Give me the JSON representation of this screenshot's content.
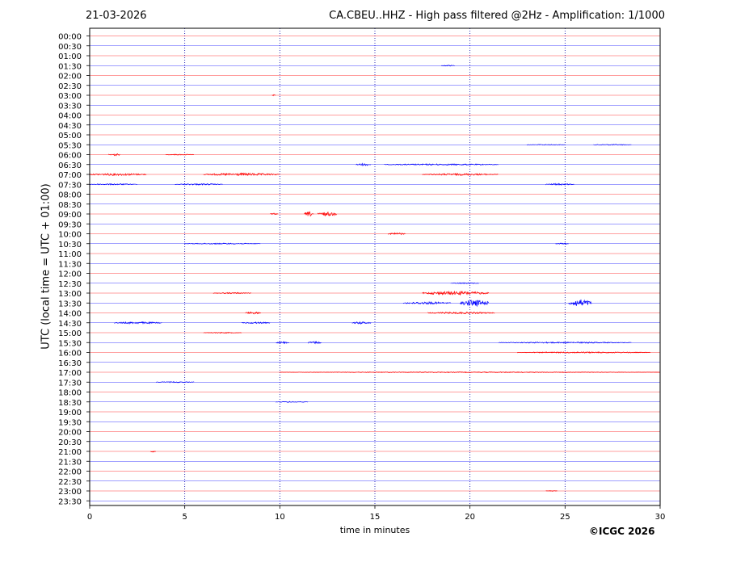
{
  "header": {
    "date": "21-03-2026",
    "title": "CA.CBEU..HHZ - High pass filtered @2Hz - Amplification: 1/1000"
  },
  "footer": {
    "copyright": "©ICGC 2026"
  },
  "chart_data": {
    "type": "seismogram",
    "xlabel": "time in minutes",
    "ylabel": "UTC (local time = UTC + 01:00)",
    "xlim": [
      0,
      30
    ],
    "x_ticks": [
      0,
      5,
      10,
      15,
      20,
      25,
      30
    ],
    "vertical_grid_minutes": [
      5,
      10,
      15,
      20,
      25
    ],
    "grid": "dotted vertical",
    "trace_colors": [
      "#ff0000",
      "#0000ff"
    ],
    "rows": [
      "00:00",
      "00:30",
      "01:00",
      "01:30",
      "02:00",
      "02:30",
      "03:00",
      "03:30",
      "04:00",
      "04:30",
      "05:00",
      "05:30",
      "06:00",
      "06:30",
      "07:00",
      "07:30",
      "08:00",
      "08:30",
      "09:00",
      "09:30",
      "10:00",
      "10:30",
      "11:00",
      "11:30",
      "12:00",
      "12:30",
      "13:00",
      "13:30",
      "14:00",
      "14:30",
      "15:00",
      "15:30",
      "16:00",
      "16:30",
      "17:00",
      "17:30",
      "18:00",
      "18:30",
      "19:00",
      "19:30",
      "20:00",
      "20:30",
      "21:00",
      "21:30",
      "22:00",
      "22:30",
      "23:00",
      "23:30"
    ],
    "events": [
      {
        "row": "01:30",
        "start": 18.5,
        "end": 19.2,
        "amp": 0.8
      },
      {
        "row": "03:00",
        "start": 9.6,
        "end": 9.8,
        "amp": 1.2
      },
      {
        "row": "05:30",
        "start": 23.0,
        "end": 25.0,
        "amp": 0.5
      },
      {
        "row": "05:30",
        "start": 26.5,
        "end": 28.5,
        "amp": 0.6
      },
      {
        "row": "06:00",
        "start": 1.0,
        "end": 1.6,
        "amp": 1.5
      },
      {
        "row": "06:00",
        "start": 4.0,
        "end": 5.5,
        "amp": 0.6
      },
      {
        "row": "06:30",
        "start": 14.0,
        "end": 14.8,
        "amp": 1.5
      },
      {
        "row": "06:30",
        "start": 15.5,
        "end": 21.5,
        "amp": 0.9
      },
      {
        "row": "07:00",
        "start": 0.0,
        "end": 3.0,
        "amp": 1.4
      },
      {
        "row": "07:00",
        "start": 6.0,
        "end": 10.0,
        "amp": 1.6
      },
      {
        "row": "07:00",
        "start": 17.5,
        "end": 21.5,
        "amp": 1.2
      },
      {
        "row": "07:30",
        "start": 0.0,
        "end": 2.5,
        "amp": 0.8
      },
      {
        "row": "07:30",
        "start": 4.5,
        "end": 7.0,
        "amp": 0.9
      },
      {
        "row": "07:30",
        "start": 24.0,
        "end": 25.5,
        "amp": 1.0
      },
      {
        "row": "09:00",
        "start": 9.5,
        "end": 9.9,
        "amp": 1.0
      },
      {
        "row": "09:00",
        "start": 11.3,
        "end": 11.8,
        "amp": 3.0
      },
      {
        "row": "09:00",
        "start": 12.0,
        "end": 13.0,
        "amp": 2.5
      },
      {
        "row": "10:00",
        "start": 15.7,
        "end": 16.6,
        "amp": 1.4
      },
      {
        "row": "10:30",
        "start": 5.0,
        "end": 9.0,
        "amp": 0.7
      },
      {
        "row": "10:30",
        "start": 24.5,
        "end": 25.2,
        "amp": 0.8
      },
      {
        "row": "12:30",
        "start": 19.0,
        "end": 20.5,
        "amp": 0.7
      },
      {
        "row": "13:00",
        "start": 6.5,
        "end": 8.5,
        "amp": 0.8
      },
      {
        "row": "13:00",
        "start": 17.5,
        "end": 21.0,
        "amp": 2.2
      },
      {
        "row": "13:30",
        "start": 16.5,
        "end": 19.0,
        "amp": 1.5
      },
      {
        "row": "13:30",
        "start": 19.5,
        "end": 21.0,
        "amp": 4.0
      },
      {
        "row": "13:30",
        "start": 25.2,
        "end": 26.4,
        "amp": 4.5
      },
      {
        "row": "14:00",
        "start": 8.2,
        "end": 9.0,
        "amp": 1.5
      },
      {
        "row": "14:00",
        "start": 17.8,
        "end": 21.3,
        "amp": 1.2
      },
      {
        "row": "14:30",
        "start": 1.3,
        "end": 3.8,
        "amp": 1.2
      },
      {
        "row": "14:30",
        "start": 8.0,
        "end": 9.5,
        "amp": 1.0
      },
      {
        "row": "14:30",
        "start": 13.8,
        "end": 14.8,
        "amp": 1.5
      },
      {
        "row": "15:00",
        "start": 6.0,
        "end": 8.0,
        "amp": 0.6
      },
      {
        "row": "15:30",
        "start": 9.8,
        "end": 10.5,
        "amp": 1.2
      },
      {
        "row": "15:30",
        "start": 11.5,
        "end": 12.2,
        "amp": 1.5
      },
      {
        "row": "15:30",
        "start": 21.5,
        "end": 28.5,
        "amp": 0.8
      },
      {
        "row": "16:00",
        "start": 22.5,
        "end": 29.5,
        "amp": 0.8
      },
      {
        "row": "17:00",
        "start": 10.0,
        "end": 30.0,
        "amp": 0.5
      },
      {
        "row": "17:30",
        "start": 3.5,
        "end": 5.5,
        "amp": 0.6
      },
      {
        "row": "18:30",
        "start": 9.8,
        "end": 11.5,
        "amp": 0.6
      },
      {
        "row": "21:00",
        "start": 3.2,
        "end": 3.5,
        "amp": 1.0
      },
      {
        "row": "23:00",
        "start": 24.0,
        "end": 24.6,
        "amp": 0.5
      }
    ]
  }
}
